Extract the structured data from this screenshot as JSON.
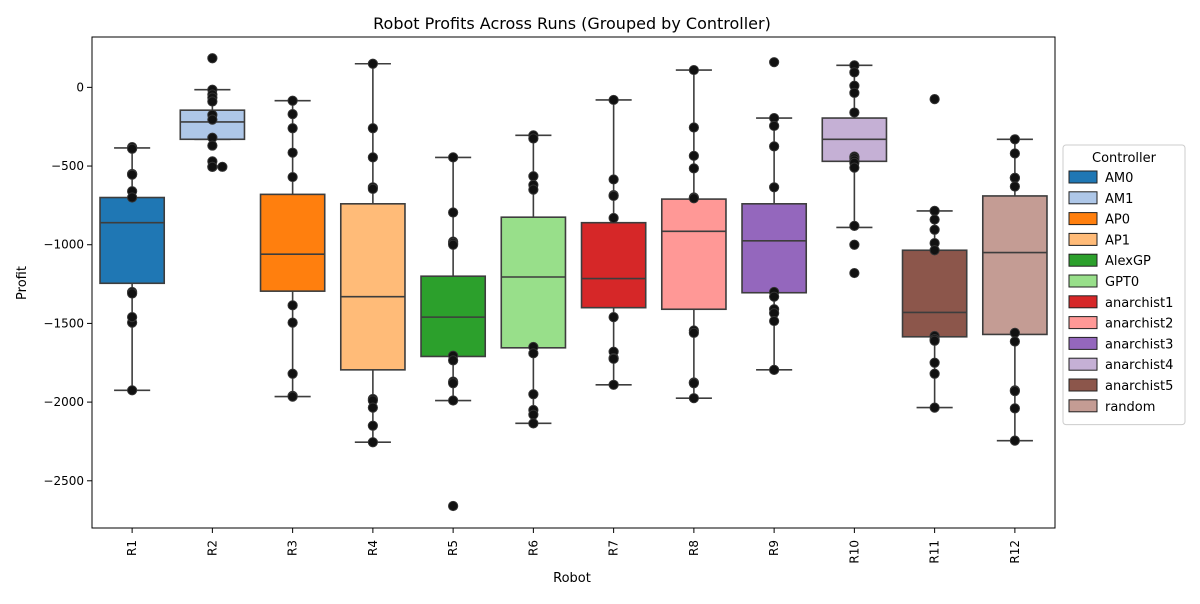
{
  "chart_data": {
    "type": "box",
    "title": "Robot Profits Across Runs (Grouped by Controller)",
    "xlabel": "Robot",
    "ylabel": "Profit",
    "ylim": [
      -2800,
      320
    ],
    "yticks": [
      0,
      -500,
      -1000,
      -1500,
      -2000,
      -2500
    ],
    "ytick_labels": [
      "0",
      "−500",
      "−1000",
      "−1500",
      "−2000",
      "−2500"
    ],
    "categories": [
      "R1",
      "R2",
      "R3",
      "R4",
      "R5",
      "R6",
      "R7",
      "R8",
      "R9",
      "R10",
      "R11",
      "R12"
    ],
    "legend": {
      "title": "Controller",
      "placement": "right",
      "entries": [
        {
          "label": "AM0",
          "color": "#1f77b4"
        },
        {
          "label": "AM1",
          "color": "#aec7e8"
        },
        {
          "label": "AP0",
          "color": "#ff7f0e"
        },
        {
          "label": "AP1",
          "color": "#ffbb78"
        },
        {
          "label": "AlexGP",
          "color": "#2ca02c"
        },
        {
          "label": "GPT0",
          "color": "#98df8a"
        },
        {
          "label": "anarchist1",
          "color": "#d62728"
        },
        {
          "label": "anarchist2",
          "color": "#ff9896"
        },
        {
          "label": "anarchist3",
          "color": "#9467bd"
        },
        {
          "label": "anarchist4",
          "color": "#c5b0d5"
        },
        {
          "label": "anarchist5",
          "color": "#8c564b"
        },
        {
          "label": "random",
          "color": "#c49c94"
        }
      ]
    },
    "boxes": [
      {
        "robot": "R1",
        "controller": "AM0",
        "whisker_low": -1925,
        "q1": -1245,
        "median": -860,
        "q3": -700,
        "whisker_high": -385,
        "points": [
          -380,
          -390,
          -550,
          -555,
          -660,
          -700,
          -1300,
          -1310,
          -1495,
          -1460,
          -1925
        ]
      },
      {
        "robot": "R2",
        "controller": "AM1",
        "whisker_low": -330,
        "q1": -330,
        "median": -220,
        "q3": -145,
        "whisker_high": -15,
        "points": [
          185,
          -15,
          -45,
          -65,
          -90,
          -175,
          -205,
          -320,
          -370,
          -470,
          -505,
          -505,
          -505
        ]
      },
      {
        "robot": "R3",
        "controller": "AP0",
        "whisker_low": -1965,
        "q1": -1295,
        "median": -1060,
        "q3": -680,
        "whisker_high": -85,
        "points": [
          -85,
          -170,
          -260,
          -415,
          -570,
          -1385,
          -1495,
          -1820,
          -1960,
          -1965
        ]
      },
      {
        "robot": "R4",
        "controller": "AP1",
        "whisker_low": -2255,
        "q1": -1795,
        "median": -1330,
        "q3": -740,
        "whisker_high": 150,
        "points": [
          150,
          -260,
          -445,
          -635,
          -645,
          -1980,
          -1990,
          -2035,
          -2150,
          -2255
        ]
      },
      {
        "robot": "R5",
        "controller": "AlexGP",
        "whisker_low": -1990,
        "q1": -1710,
        "median": -1460,
        "q3": -1200,
        "whisker_high": -445,
        "points": [
          -445,
          -795,
          -980,
          -990,
          -1000,
          -1705,
          -1735,
          -1870,
          -1880,
          -1990,
          -2660
        ]
      },
      {
        "robot": "R6",
        "controller": "GPT0",
        "whisker_low": -2135,
        "q1": -1655,
        "median": -1205,
        "q3": -825,
        "whisker_high": -305,
        "points": [
          -305,
          -325,
          -565,
          -620,
          -650,
          -1650,
          -1690,
          -1950,
          -2050,
          -2080,
          -2135
        ]
      },
      {
        "robot": "R7",
        "controller": "anarchist1",
        "whisker_low": -1890,
        "q1": -1400,
        "median": -1215,
        "q3": -860,
        "whisker_high": -80,
        "points": [
          -80,
          -585,
          -685,
          -690,
          -830,
          -1460,
          -1680,
          -1720,
          -1725,
          -1890
        ]
      },
      {
        "robot": "R8",
        "controller": "anarchist2",
        "whisker_low": -1975,
        "q1": -1410,
        "median": -915,
        "q3": -710,
        "whisker_high": 110,
        "points": [
          110,
          -255,
          -435,
          -515,
          -700,
          -705,
          -1545,
          -1560,
          -1875,
          -1880,
          -1975
        ]
      },
      {
        "robot": "R9",
        "controller": "anarchist3",
        "whisker_low": -1795,
        "q1": -1305,
        "median": -975,
        "q3": -740,
        "whisker_high": -195,
        "points": [
          160,
          -195,
          -245,
          -375,
          -635,
          -1300,
          -1330,
          -1410,
          -1435,
          -1485,
          -1795
        ]
      },
      {
        "robot": "R10",
        "controller": "anarchist4",
        "whisker_low": -890,
        "q1": -470,
        "median": -330,
        "q3": -195,
        "whisker_high": 140,
        "points": [
          140,
          95,
          10,
          -35,
          -160,
          -440,
          -450,
          -465,
          -480,
          -510,
          -880,
          -1000,
          -1180
        ]
      },
      {
        "robot": "R11",
        "controller": "anarchist5",
        "whisker_low": -2035,
        "q1": -1585,
        "median": -1430,
        "q3": -1035,
        "whisker_high": -785,
        "points": [
          -75,
          -785,
          -840,
          -905,
          -990,
          -1035,
          -1580,
          -1600,
          -1610,
          -1750,
          -1820,
          -2035
        ]
      },
      {
        "robot": "R12",
        "controller": "random",
        "whisker_low": -2245,
        "q1": -1570,
        "median": -1050,
        "q3": -690,
        "whisker_high": -330,
        "points": [
          -330,
          -420,
          -575,
          -575,
          -630,
          -1560,
          -1615,
          -1925,
          -1930,
          -2040,
          -2245
        ]
      }
    ]
  }
}
